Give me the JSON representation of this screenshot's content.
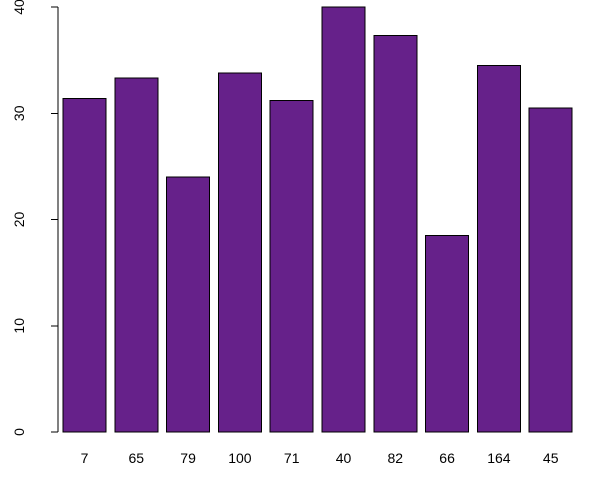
{
  "chart_data": {
    "type": "bar",
    "categories": [
      "7",
      "65",
      "79",
      "100",
      "71",
      "40",
      "82",
      "66",
      "164",
      "45"
    ],
    "values": [
      31.4,
      33.3,
      24.0,
      33.8,
      31.2,
      40.0,
      37.3,
      18.5,
      34.5,
      30.5
    ],
    "ylim": [
      0,
      40
    ],
    "yticks": [
      "0",
      "10",
      "20",
      "30",
      "40"
    ],
    "title": "",
    "xlabel": "",
    "ylabel": "",
    "grid": false,
    "bar_color": "#66218a",
    "bar_edge_color": "#000000"
  }
}
